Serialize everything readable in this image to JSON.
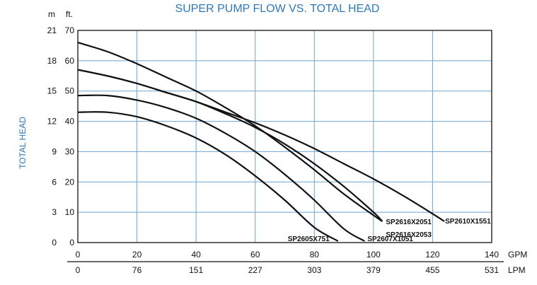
{
  "chart_data": {
    "type": "line",
    "title": "SUPER PUMP FLOW VS. TOTAL HEAD",
    "ylabel": "TOTAL HEAD",
    "y_units": {
      "left": "m",
      "right": "ft."
    },
    "y_ticks_m": [
      "21",
      "18",
      "15",
      "12",
      "9",
      "6",
      "3",
      "0"
    ],
    "y_ticks_ft": [
      "70",
      "60",
      "50",
      "40",
      "30",
      "20",
      "10",
      "0"
    ],
    "x_unit_gpm": "GPM",
    "x_unit_lpm": "LPM",
    "x_ticks_gpm": [
      "0",
      "20",
      "40",
      "60",
      "80",
      "100",
      "120",
      "140"
    ],
    "x_ticks_lpm": [
      "0",
      "76",
      "151",
      "227",
      "303",
      "379",
      "455",
      "531"
    ],
    "xlim": [
      0,
      140
    ],
    "ylim": [
      0,
      70
    ],
    "grid": true,
    "series": [
      {
        "name": "SP2605X751",
        "x": [
          0,
          10,
          20,
          30,
          40,
          50,
          60,
          70,
          80,
          88
        ],
        "y": [
          43,
          43,
          41.5,
          38.5,
          34.5,
          29,
          22,
          14,
          5,
          0.5
        ]
      },
      {
        "name": "SP2607X1051",
        "x": [
          0,
          10,
          20,
          30,
          40,
          50,
          60,
          70,
          80,
          90,
          97
        ],
        "y": [
          48.5,
          48.5,
          47,
          44.5,
          41,
          36,
          30,
          22.5,
          14,
          4.5,
          0.5
        ]
      },
      {
        "name": "SP2616X2053",
        "x": [
          0,
          10,
          20,
          30,
          40,
          50,
          60,
          70,
          80,
          90,
          100,
          103
        ],
        "y": [
          57,
          55,
          52.5,
          49.5,
          46.5,
          42.5,
          38,
          32.5,
          26,
          18.5,
          10,
          7
        ]
      },
      {
        "name": "SP2616X2051",
        "x": [
          0,
          10,
          20,
          30,
          40,
          50,
          60,
          70,
          80,
          90,
          100,
          103
        ],
        "y": [
          66,
          63,
          59,
          54.5,
          50,
          44.5,
          38.5,
          31.5,
          24,
          16,
          9,
          7
        ]
      },
      {
        "name": "SP2610X1551",
        "x": [
          0,
          10,
          20,
          30,
          40,
          50,
          60,
          70,
          80,
          90,
          100,
          110,
          120,
          124
        ],
        "y": [
          57,
          55,
          52.5,
          49.5,
          46.5,
          43,
          39.5,
          35.5,
          31,
          26,
          21,
          15.5,
          9.5,
          7
        ]
      }
    ]
  }
}
